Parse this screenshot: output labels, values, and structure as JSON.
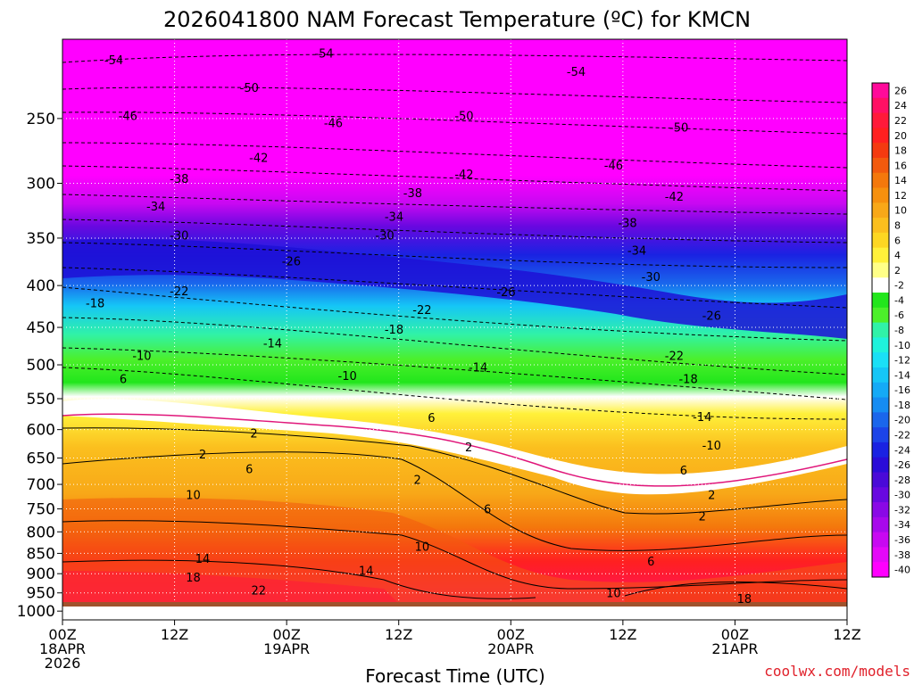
{
  "title": "2026041800 NAM Forecast Temperature (ºC) for KMCN",
  "credit": "coolwx.com/models",
  "chart_data": {
    "type": "heatmap",
    "title": "2026041800 NAM Forecast Temperature (ºC) for KMCN",
    "xlabel": "Forecast Time (UTC)",
    "ylabel": "",
    "y_scale": "log-pressure (hPa, inverted)",
    "ylim": [
      1025,
      200
    ],
    "xlim_hours": [
      0,
      84
    ],
    "y_ticks": [
      250,
      300,
      350,
      400,
      450,
      500,
      550,
      600,
      650,
      700,
      750,
      800,
      850,
      900,
      950,
      1000
    ],
    "x_ticks": [
      {
        "h": 0,
        "lines": [
          "00Z",
          "18APR",
          "2026"
        ]
      },
      {
        "h": 12,
        "lines": [
          "12Z"
        ]
      },
      {
        "h": 24,
        "lines": [
          "00Z",
          "19APR"
        ]
      },
      {
        "h": 36,
        "lines": [
          "12Z"
        ]
      },
      {
        "h": 48,
        "lines": [
          "00Z",
          "20APR"
        ]
      },
      {
        "h": 60,
        "lines": [
          "12Z"
        ]
      },
      {
        "h": 72,
        "lines": [
          "00Z",
          "21APR"
        ]
      },
      {
        "h": 84,
        "lines": [
          "12Z"
        ]
      }
    ],
    "colorbar": {
      "labels": [
        26,
        24,
        22,
        20,
        18,
        16,
        14,
        12,
        10,
        8,
        6,
        4,
        2,
        -2,
        -4,
        -6,
        -8,
        -10,
        -12,
        -14,
        -16,
        -18,
        -20,
        -22,
        -24,
        -26,
        -28,
        -30,
        -32,
        -34,
        -36,
        -38,
        -40
      ],
      "colors": [
        "#ff0a9a",
        "#ff1064",
        "#ff1a3a",
        "#ff2020",
        "#f43a10",
        "#f25a0e",
        "#f4780c",
        "#f6900e",
        "#f8a818",
        "#fbbf1e",
        "#fdd722",
        "#fff13a",
        "#ffff88",
        "#ffffff",
        "#22e61c",
        "#4cf02a",
        "#30f2a8",
        "#1ff2dc",
        "#1ae0f6",
        "#15c6f6",
        "#14aaf6",
        "#158cf2",
        "#1a66ec",
        "#1c44e8",
        "#1a22e2",
        "#2a0cd8",
        "#4a0ad8",
        "#6808e0",
        "#8a08e6",
        "#a808ec",
        "#c808f2",
        "#e408f8",
        "#ff00ff"
      ]
    },
    "isotherm_labels": [
      {
        "v": "-54",
        "h": 5.5,
        "p": 212
      },
      {
        "v": "-54",
        "h": 28,
        "p": 208
      },
      {
        "v": "-54",
        "h": 55,
        "p": 219
      },
      {
        "v": "-50",
        "h": 20,
        "p": 229
      },
      {
        "v": "-50",
        "h": 43,
        "p": 248
      },
      {
        "v": "-50",
        "h": 66,
        "p": 256
      },
      {
        "v": "-46",
        "h": 7,
        "p": 248
      },
      {
        "v": "-46",
        "h": 29,
        "p": 253
      },
      {
        "v": "-46",
        "h": 59,
        "p": 285
      },
      {
        "v": "-42",
        "h": 21,
        "p": 279
      },
      {
        "v": "-42",
        "h": 43,
        "p": 292
      },
      {
        "v": "-42",
        "h": 65.5,
        "p": 311
      },
      {
        "v": "-38",
        "h": 12.5,
        "p": 296
      },
      {
        "v": "-38",
        "h": 37.5,
        "p": 308
      },
      {
        "v": "-38",
        "h": 60.5,
        "p": 335
      },
      {
        "v": "-34",
        "h": 10,
        "p": 320
      },
      {
        "v": "-34",
        "h": 35.5,
        "p": 329
      },
      {
        "v": "-34",
        "h": 61.5,
        "p": 362
      },
      {
        "v": "-30",
        "h": 12.5,
        "p": 347
      },
      {
        "v": "-30",
        "h": 34.5,
        "p": 347
      },
      {
        "v": "-30",
        "h": 63,
        "p": 390
      },
      {
        "v": "-26",
        "h": 24.5,
        "p": 373
      },
      {
        "v": "-26",
        "h": 47.5,
        "p": 407
      },
      {
        "v": "-26",
        "h": 69.5,
        "p": 435
      },
      {
        "v": "-22",
        "h": 12.5,
        "p": 406
      },
      {
        "v": "-22",
        "h": 38.5,
        "p": 428
      },
      {
        "v": "-22",
        "h": 65.5,
        "p": 487
      },
      {
        "v": "-18",
        "h": 3.5,
        "p": 420
      },
      {
        "v": "-18",
        "h": 35.5,
        "p": 452
      },
      {
        "v": "-18",
        "h": 67,
        "p": 520
      },
      {
        "v": "-14",
        "h": 22.5,
        "p": 470
      },
      {
        "v": "-14",
        "h": 44.5,
        "p": 503
      },
      {
        "v": "-14",
        "h": 68.5,
        "p": 578
      },
      {
        "v": "-10",
        "h": 8.5,
        "p": 487
      },
      {
        "v": "-10",
        "h": 30.5,
        "p": 515
      },
      {
        "v": "-10",
        "h": 69.5,
        "p": 627
      },
      {
        "v": "6",
        "h": 6.5,
        "p": 520
      },
      {
        "v": "6",
        "h": 39.5,
        "p": 580
      },
      {
        "v": "6",
        "h": 66.5,
        "p": 672
      },
      {
        "v": "2",
        "h": 20.5,
        "p": 606
      },
      {
        "v": "2",
        "h": 43.5,
        "p": 630
      },
      {
        "v": "2",
        "h": 69.5,
        "p": 720
      },
      {
        "v": "2",
        "h": 15,
        "p": 643
      },
      {
        "v": "2",
        "h": 38,
        "p": 690
      },
      {
        "v": "2",
        "h": 68.5,
        "p": 765
      },
      {
        "v": "6",
        "h": 20,
        "p": 670
      },
      {
        "v": "6",
        "h": 45.5,
        "p": 750
      },
      {
        "v": "10",
        "h": 14,
        "p": 720
      },
      {
        "v": "10",
        "h": 38.5,
        "p": 833
      },
      {
        "v": "10",
        "h": 59,
        "p": 950
      },
      {
        "v": "14",
        "h": 15,
        "p": 862
      },
      {
        "v": "14",
        "h": 32.5,
        "p": 892
      },
      {
        "v": "18",
        "h": 14,
        "p": 909
      },
      {
        "v": "18",
        "h": 73,
        "p": 965
      },
      {
        "v": "22",
        "h": 21,
        "p": 942
      },
      {
        "v": "6",
        "h": 63,
        "p": 868
      }
    ]
  }
}
